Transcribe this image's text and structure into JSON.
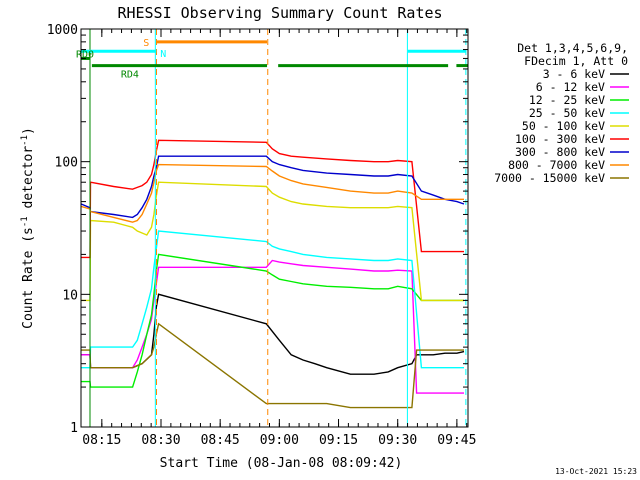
{
  "chart_data": {
    "type": "line",
    "title": "RHESSI Observing Summary Count Rates",
    "xlabel": "Start Time (08-Jan-08 08:09:42)",
    "ylabel_main": "Count Rate (s",
    "ylabel_sup1": "-1",
    "ylabel_mid": " detector",
    "ylabel_sup2": "-1",
    "ylabel_end": ")",
    "footer": "13-Oct-2021 15:23",
    "xlim": [
      8.162,
      9.797
    ],
    "ylim": [
      1,
      1000
    ],
    "yscale": "log",
    "x_ticks": [
      {
        "v": 8.25,
        "label": "08:15"
      },
      {
        "v": 8.5,
        "label": "08:30"
      },
      {
        "v": 8.75,
        "label": "08:45"
      },
      {
        "v": 9.0,
        "label": "09:00"
      },
      {
        "v": 9.25,
        "label": "09:15"
      },
      {
        "v": 9.5,
        "label": "09:30"
      },
      {
        "v": 9.75,
        "label": "09:45"
      }
    ],
    "y_ticks": [
      {
        "v": 1,
        "label": "1"
      },
      {
        "v": 10,
        "label": "10"
      },
      {
        "v": 100,
        "label": "100"
      },
      {
        "v": 1000,
        "label": "1000"
      }
    ],
    "legend_header": [
      "Det 1,3,4,5,6,9,",
      "FDecim 1, Att 0"
    ],
    "series": [
      {
        "name": "3 - 6 keV",
        "color": "#000000",
        "x": [
          8.163,
          8.2,
          8.202,
          8.38,
          8.42,
          8.46,
          8.47,
          8.48,
          8.49,
          8.945,
          9.0,
          9.05,
          9.1,
          9.15,
          9.2,
          9.3,
          9.4,
          9.46,
          9.5,
          9.56,
          9.58,
          9.65,
          9.7,
          9.75,
          9.78
        ],
        "y": [
          3.5,
          3.5,
          2.8,
          2.8,
          3.0,
          3.5,
          5.0,
          8.0,
          10,
          6.0,
          4.5,
          3.5,
          3.2,
          3.0,
          2.8,
          2.5,
          2.5,
          2.6,
          2.8,
          3.0,
          3.5,
          3.5,
          3.6,
          3.6,
          3.7
        ]
      },
      {
        "name": "6 - 12 keV",
        "color": "#ff00ff",
        "x": [
          8.163,
          8.2,
          8.202,
          8.38,
          8.4,
          8.42,
          8.44,
          8.46,
          8.47,
          8.48,
          8.49,
          8.945,
          8.97,
          9.0,
          9.05,
          9.1,
          9.2,
          9.3,
          9.4,
          9.46,
          9.5,
          9.56,
          9.58,
          9.62,
          9.65,
          9.7,
          9.75,
          9.78
        ],
        "y": [
          3.5,
          3.5,
          2.8,
          2.8,
          3.2,
          4.0,
          5.0,
          6.5,
          9.0,
          12,
          16,
          16,
          18,
          17.5,
          17,
          16.5,
          16,
          15.5,
          15,
          15,
          15.2,
          15,
          1.8,
          1.8,
          1.8,
          1.8,
          1.8,
          1.8
        ]
      },
      {
        "name": "12 - 25 keV",
        "color": "#00ee00",
        "x": [
          8.163,
          8.2,
          8.202,
          8.38,
          8.4,
          8.42,
          8.44,
          8.46,
          8.47,
          8.48,
          8.49,
          8.945,
          8.97,
          9.0,
          9.05,
          9.1,
          9.2,
          9.3,
          9.4,
          9.46,
          9.5,
          9.56,
          9.6,
          9.65,
          9.7,
          9.75,
          9.78
        ],
        "y": [
          2.2,
          2.2,
          2.0,
          2.0,
          2.6,
          3.5,
          5.0,
          7.0,
          10,
          15,
          20,
          15,
          14,
          13,
          12.5,
          12,
          11.5,
          11.3,
          11,
          11,
          11.5,
          11,
          9.0,
          9.0,
          9.0,
          9.0,
          9.0
        ]
      },
      {
        "name": "25 - 50 keV",
        "color": "#00ffff",
        "x": [
          8.163,
          8.2,
          8.202,
          8.3,
          8.38,
          8.4,
          8.42,
          8.44,
          8.46,
          8.47,
          8.48,
          8.49,
          8.945,
          8.97,
          9.0,
          9.05,
          9.1,
          9.2,
          9.3,
          9.4,
          9.46,
          9.5,
          9.56,
          9.6,
          9.65,
          9.7,
          9.75,
          9.78
        ],
        "y": [
          2.8,
          2.8,
          4.0,
          4.0,
          4.0,
          4.5,
          6.0,
          8.0,
          11,
          16,
          22,
          30,
          25,
          23,
          22,
          21,
          20,
          19,
          18.5,
          18,
          18,
          18.5,
          18,
          2.8,
          2.8,
          2.8,
          2.8,
          2.8
        ]
      },
      {
        "name": "50 - 100 keV",
        "color": "#dddd00",
        "x": [
          8.163,
          8.2,
          8.202,
          8.3,
          8.38,
          8.4,
          8.42,
          8.44,
          8.46,
          8.47,
          8.48,
          8.49,
          8.945,
          8.97,
          9.0,
          9.05,
          9.1,
          9.2,
          9.3,
          9.4,
          9.46,
          9.5,
          9.56,
          9.6,
          9.65,
          9.7,
          9.75,
          9.78
        ],
        "y": [
          9.0,
          9.0,
          36,
          35,
          32,
          30,
          29,
          28,
          32,
          40,
          55,
          70,
          65,
          58,
          54,
          50,
          48,
          46,
          45,
          45,
          45,
          46,
          45,
          9.0,
          9.0,
          9.0,
          9.0,
          9.0
        ]
      },
      {
        "name": "100 - 300 keV",
        "color": "#ff0000",
        "x": [
          8.163,
          8.2,
          8.202,
          8.3,
          8.38,
          8.4,
          8.42,
          8.44,
          8.46,
          8.47,
          8.48,
          8.49,
          8.945,
          8.97,
          9.0,
          9.05,
          9.1,
          9.2,
          9.3,
          9.4,
          9.46,
          9.5,
          9.56,
          9.6,
          9.65,
          9.7,
          9.75,
          9.78
        ],
        "y": [
          19,
          19,
          70,
          65,
          62,
          64,
          66,
          70,
          80,
          95,
          120,
          145,
          140,
          125,
          115,
          110,
          108,
          105,
          102,
          100,
          100,
          102,
          100,
          21,
          21,
          21,
          21,
          21
        ]
      },
      {
        "name": "300 - 800 keV",
        "color": "#0000cc",
        "x": [
          8.163,
          8.2,
          8.202,
          8.3,
          8.38,
          8.4,
          8.42,
          8.44,
          8.46,
          8.47,
          8.48,
          8.49,
          8.945,
          8.97,
          9.0,
          9.05,
          9.1,
          9.2,
          9.3,
          9.4,
          9.46,
          9.5,
          9.56,
          9.6,
          9.65,
          9.7,
          9.75,
          9.78
        ],
        "y": [
          48,
          45,
          42,
          40,
          38,
          40,
          45,
          52,
          65,
          78,
          90,
          110,
          110,
          100,
          95,
          90,
          86,
          82,
          80,
          78,
          78,
          80,
          78,
          60,
          56,
          52,
          50,
          48
        ]
      },
      {
        "name": "800 - 7000 keV",
        "color": "#ff8800",
        "x": [
          8.163,
          8.2,
          8.202,
          8.3,
          8.38,
          8.4,
          8.42,
          8.44,
          8.46,
          8.47,
          8.48,
          8.49,
          8.945,
          8.97,
          9.0,
          9.05,
          9.1,
          9.2,
          9.3,
          9.4,
          9.46,
          9.5,
          9.56,
          9.6,
          9.65,
          9.7,
          9.75,
          9.78
        ],
        "y": [
          46,
          44,
          42,
          38,
          35,
          36,
          40,
          48,
          58,
          70,
          85,
          95,
          92,
          85,
          78,
          72,
          68,
          64,
          60,
          58,
          58,
          60,
          58,
          52,
          52,
          52,
          52,
          52
        ]
      },
      {
        "name": "7000 - 15000 keV",
        "color": "#8b7500",
        "x": [
          8.163,
          8.2,
          8.202,
          8.38,
          8.42,
          8.46,
          8.47,
          8.48,
          8.49,
          8.945,
          9.0,
          9.1,
          9.2,
          9.3,
          9.4,
          9.46,
          9.5,
          9.56,
          9.58,
          9.65,
          9.7,
          9.75,
          9.78
        ],
        "y": [
          3.8,
          3.8,
          2.8,
          2.8,
          3.0,
          3.5,
          4.0,
          5.0,
          6.0,
          1.5,
          1.5,
          1.5,
          1.5,
          1.4,
          1.4,
          1.4,
          1.4,
          1.4,
          3.8,
          3.8,
          3.8,
          3.8,
          3.8
        ]
      }
    ],
    "flag_bars": [
      {
        "label": "S",
        "color": "#ff8800",
        "level": 800,
        "segments": [
          [
            8.48,
            8.948
          ]
        ]
      },
      {
        "label": "N",
        "color": "#00ffff",
        "level": 680,
        "segments": [
          [
            8.162,
            8.48
          ],
          [
            9.543,
            9.79
          ]
        ]
      },
      {
        "label": "RD0",
        "color": "#008800",
        "level": 600,
        "segments": [
          [
            8.162,
            8.199
          ]
        ]
      },
      {
        "label": "RD4",
        "color": "#008800",
        "level": 530,
        "segments": [
          [
            8.208,
            8.948
          ],
          [
            8.995,
            9.713
          ],
          [
            9.748,
            9.797
          ]
        ]
      }
    ],
    "vertical_markers": [
      {
        "x": 8.2,
        "color": "#008800",
        "style": "solid"
      },
      {
        "x": 8.476,
        "color": "#00ffff",
        "style": "solid"
      },
      {
        "x": 8.481,
        "color": "#ff8800",
        "style": "dashed"
      },
      {
        "x": 8.951,
        "color": "#ff8800",
        "style": "dashed"
      },
      {
        "x": 9.541,
        "color": "#00ffff",
        "style": "solid"
      },
      {
        "x": 9.788,
        "color": "#00ffff",
        "style": "dashed"
      }
    ]
  }
}
